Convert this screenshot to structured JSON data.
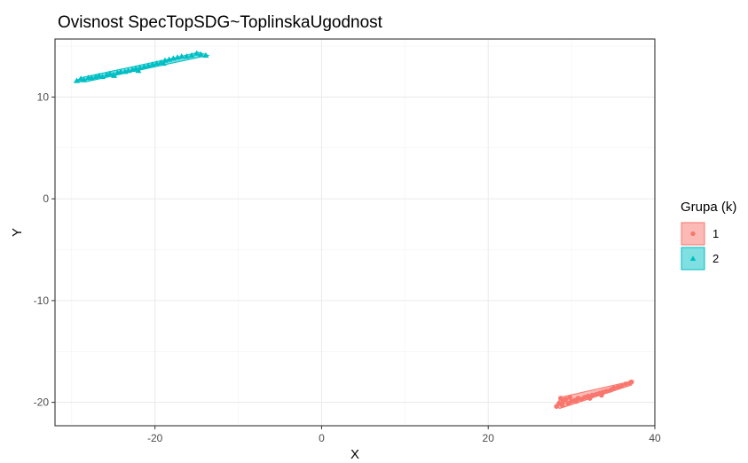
{
  "chart_data": {
    "type": "scatter",
    "title": "Ovisnost SpecTopSDG~ToplinskaUgodnost",
    "xlabel": "X",
    "ylabel": "Y",
    "xlim": [
      -32,
      40
    ],
    "ylim": [
      -22.3,
      15.7
    ],
    "x_ticks": [
      -20,
      0,
      20,
      40
    ],
    "y_ticks": [
      -20,
      -10,
      0,
      10
    ],
    "x_tick_labels": [
      "-20",
      "0",
      "20",
      "40"
    ],
    "y_tick_labels": [
      "-20",
      "-10",
      "0",
      "10"
    ],
    "grid": true,
    "legend": {
      "title": "Grupa (k)",
      "placement": "right"
    },
    "series": [
      {
        "name": "1",
        "marker": "circle",
        "color": "#F8766D",
        "hull": [
          [
            28.1,
            -20.4
          ],
          [
            28.7,
            -19.5
          ],
          [
            37.3,
            -17.9
          ],
          [
            37.2,
            -18.3
          ],
          [
            28.6,
            -20.6
          ]
        ],
        "points": [
          [
            28.2,
            -20.4
          ],
          [
            28.5,
            -20.1
          ],
          [
            28.7,
            -19.6
          ],
          [
            29.0,
            -19.9
          ],
          [
            29.3,
            -19.7
          ],
          [
            29.6,
            -20.1
          ],
          [
            30.0,
            -19.9
          ],
          [
            30.4,
            -19.8
          ],
          [
            30.8,
            -19.6
          ],
          [
            31.2,
            -19.7
          ],
          [
            31.6,
            -19.5
          ],
          [
            32.0,
            -19.4
          ],
          [
            32.5,
            -19.3
          ],
          [
            33.0,
            -19.2
          ],
          [
            33.4,
            -19.1
          ],
          [
            33.8,
            -19.0
          ],
          [
            34.2,
            -18.9
          ],
          [
            34.7,
            -18.8
          ],
          [
            35.1,
            -18.6
          ],
          [
            35.6,
            -18.5
          ],
          [
            36.0,
            -18.4
          ],
          [
            36.5,
            -18.2
          ],
          [
            37.0,
            -18.1
          ],
          [
            37.2,
            -18.0
          ],
          [
            28.9,
            -20.3
          ],
          [
            29.8,
            -19.5
          ],
          [
            30.6,
            -19.9
          ],
          [
            32.2,
            -19.6
          ],
          [
            33.6,
            -19.3
          ],
          [
            34.9,
            -18.7
          ]
        ]
      },
      {
        "name": "2",
        "marker": "triangle",
        "color": "#00BFC4",
        "hull": [
          [
            -29.6,
            11.5
          ],
          [
            -28.9,
            11.9
          ],
          [
            -16.8,
            14.0
          ],
          [
            -14.8,
            14.4
          ],
          [
            -13.6,
            14.1
          ],
          [
            -28.3,
            11.5
          ]
        ],
        "points": [
          [
            -29.4,
            11.6
          ],
          [
            -28.9,
            11.8
          ],
          [
            -28.5,
            11.7
          ],
          [
            -28.0,
            11.9
          ],
          [
            -27.6,
            11.9
          ],
          [
            -27.1,
            12.0
          ],
          [
            -26.7,
            12.1
          ],
          [
            -26.3,
            12.0
          ],
          [
            -25.8,
            12.2
          ],
          [
            -25.4,
            12.3
          ],
          [
            -25.0,
            12.2
          ],
          [
            -24.5,
            12.4
          ],
          [
            -24.1,
            12.5
          ],
          [
            -23.6,
            12.5
          ],
          [
            -23.2,
            12.6
          ],
          [
            -22.7,
            12.7
          ],
          [
            -22.3,
            12.8
          ],
          [
            -21.8,
            12.9
          ],
          [
            -21.3,
            13.0
          ],
          [
            -20.8,
            13.1
          ],
          [
            -20.3,
            13.2
          ],
          [
            -19.8,
            13.3
          ],
          [
            -19.3,
            13.4
          ],
          [
            -18.8,
            13.6
          ],
          [
            -18.3,
            13.7
          ],
          [
            -17.8,
            13.8
          ],
          [
            -17.3,
            13.9
          ],
          [
            -16.8,
            14.0
          ],
          [
            -16.2,
            14.0
          ],
          [
            -15.6,
            14.1
          ],
          [
            -15.0,
            14.3
          ],
          [
            -14.5,
            14.2
          ],
          [
            -13.9,
            14.1
          ],
          [
            -24.9,
            12.1
          ],
          [
            -22.0,
            12.6
          ],
          [
            -19.0,
            13.3
          ]
        ]
      }
    ]
  }
}
